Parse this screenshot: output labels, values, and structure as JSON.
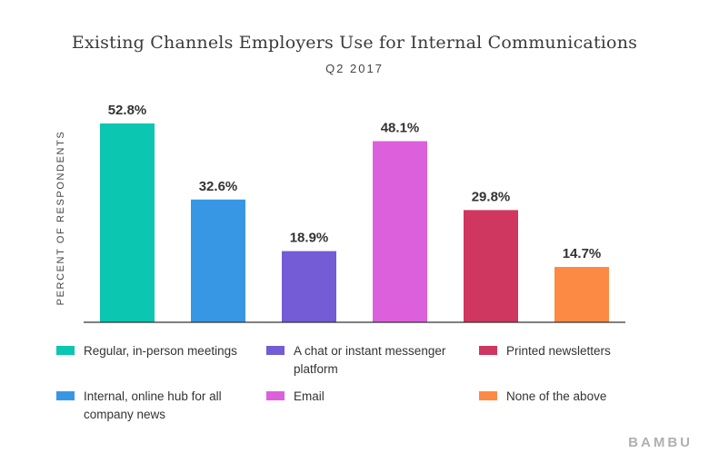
{
  "title": "Existing Channels Employers Use for Internal Communications",
  "subtitle": "Q2 2017",
  "brand": "BAMBU",
  "chart_data": {
    "type": "bar",
    "title": "Existing Channels Employers Use for Internal Communications",
    "subtitle": "Q2 2017",
    "ylabel": "PERCENT OF RESPONDENTS",
    "xlabel": "",
    "ylim": [
      0,
      55
    ],
    "grid": false,
    "legend_position": "bottom",
    "categories": [
      "Regular, in-person meetings",
      "Internal, online hub for all company news",
      "A chat or instant messenger platform",
      "Email",
      "Printed newsletters",
      "None of the above"
    ],
    "values": [
      52.8,
      32.6,
      18.9,
      48.1,
      29.8,
      14.7
    ],
    "value_labels": [
      "52.8%",
      "32.6%",
      "18.9%",
      "48.1%",
      "29.8%",
      "14.7%"
    ],
    "colors": [
      "#0bc6b1",
      "#3897e4",
      "#735cd6",
      "#dc60dc",
      "#cf3660",
      "#fc8a44"
    ]
  }
}
